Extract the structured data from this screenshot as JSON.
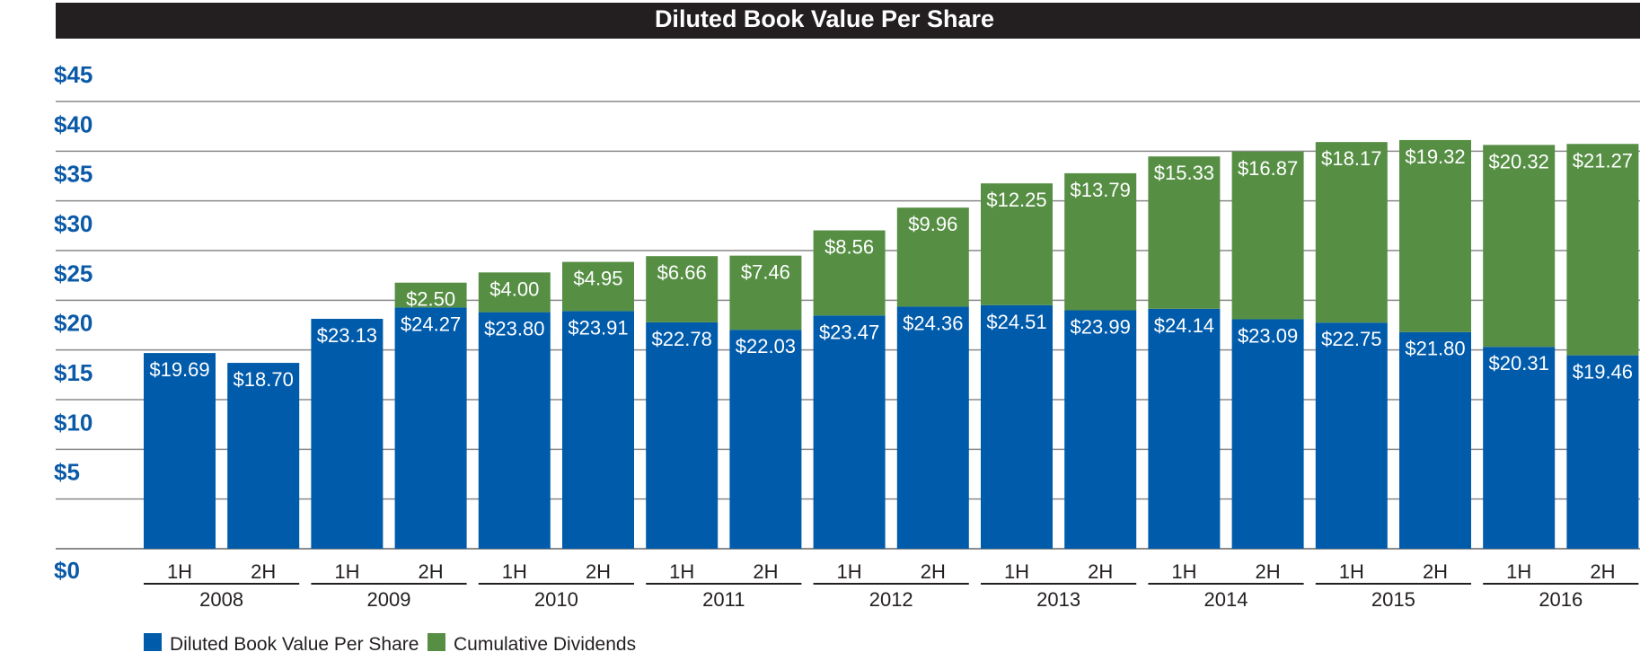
{
  "chart_data": {
    "type": "bar",
    "stacked": true,
    "title": "Diluted Book Value Per Share",
    "ylim": [
      0,
      45
    ],
    "y_ticks": [
      "$0",
      "$5",
      "$10",
      "$15",
      "$20",
      "$25",
      "$30",
      "$35",
      "$40",
      "$45"
    ],
    "y_tick_values": [
      0,
      5,
      10,
      15,
      20,
      25,
      30,
      35,
      40,
      45
    ],
    "grid": true,
    "legend_position": "bottom-left",
    "years": [
      "2008",
      "2009",
      "2010",
      "2011",
      "2012",
      "2013",
      "2014",
      "2015",
      "2016"
    ],
    "halves": [
      "1H",
      "2H"
    ],
    "categories": [
      "2008 1H",
      "2008 2H",
      "2009 1H",
      "2009 2H",
      "2010 1H",
      "2010 2H",
      "2011 1H",
      "2011 2H",
      "2012 1H",
      "2012 2H",
      "2013 1H",
      "2013 2H",
      "2014 1H",
      "2014 2H",
      "2015 1H",
      "2015 2H",
      "2016 1H",
      "2016 2H"
    ],
    "series": [
      {
        "name": "Diluted Book Value Per Share",
        "color": "#005bab",
        "values": [
          19.69,
          18.7,
          23.13,
          24.27,
          23.8,
          23.91,
          22.78,
          22.03,
          23.47,
          24.36,
          24.51,
          23.99,
          24.14,
          23.09,
          22.75,
          21.8,
          20.31,
          19.46
        ],
        "labels": [
          "$19.69",
          "$18.70",
          "$23.13",
          "$24.27",
          "$23.80",
          "$23.91",
          "$22.78",
          "$22.03",
          "$23.47",
          "$24.36",
          "$24.51",
          "$23.99",
          "$24.14",
          "$23.09",
          "$22.75",
          "$21.80",
          "$20.31",
          "$19.46"
        ]
      },
      {
        "name": "Cumulative Dividends",
        "color": "#568f44",
        "values": [
          null,
          null,
          null,
          2.5,
          4.0,
          4.95,
          6.66,
          7.46,
          8.56,
          9.96,
          12.25,
          13.79,
          15.33,
          16.87,
          18.17,
          19.32,
          20.32,
          21.27
        ],
        "labels": [
          null,
          null,
          null,
          "$2.50",
          "$4.00",
          "$4.95",
          "$6.66",
          "$7.46",
          "$8.56",
          "$9.96",
          "$12.25",
          "$13.79",
          "$15.33",
          "$16.87",
          "$18.17",
          "$19.32",
          "$20.32",
          "$21.27"
        ]
      }
    ]
  }
}
